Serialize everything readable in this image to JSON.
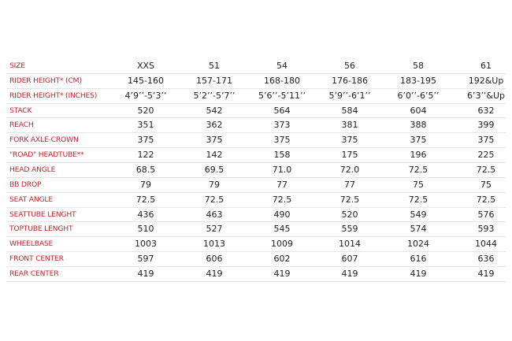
{
  "colors": {
    "label": "#c8242b",
    "value": "#222222",
    "divider": "#e6e6e6"
  },
  "table": {
    "columns": [
      "XXS",
      "51",
      "54",
      "56",
      "58",
      "61"
    ],
    "header_label": "SIZE",
    "rows": [
      {
        "label": "RIDER HEIGHT* (CM)",
        "values": [
          "145-160",
          "157-171",
          "168-180",
          "176-186",
          "183-195",
          "192&Up"
        ]
      },
      {
        "label": "RIDER HEIGHT* (INCHES)",
        "values": [
          "4’9’’-5’3’’",
          "5’2’’-5’7’’",
          "5’6’’-5’11’’",
          "5’9’’-6’1’’",
          "6’0’’-6’5’’",
          "6’3’’&Up"
        ]
      },
      {
        "label": "STACK",
        "values": [
          "520",
          "542",
          "564",
          "584",
          "604",
          "632"
        ]
      },
      {
        "label": "REACH",
        "values": [
          "351",
          "362",
          "373",
          "381",
          "388",
          "399"
        ]
      },
      {
        "label": "FORK AXLE-CROWN",
        "values": [
          "375",
          "375",
          "375",
          "375",
          "375",
          "375"
        ]
      },
      {
        "label": "\"ROAD\" HEADTUBE**",
        "values": [
          "122",
          "142",
          "158",
          "175",
          "196",
          "225"
        ]
      },
      {
        "label": "HEAD ANGLE",
        "values": [
          "68.5",
          "69.5",
          "71.0",
          "72.0",
          "72.5",
          "72.5"
        ]
      },
      {
        "label": "BB DROP",
        "values": [
          "79",
          "79",
          "77",
          "77",
          "75",
          "75"
        ]
      },
      {
        "label": "SEAT ANGLE",
        "values": [
          "72.5",
          "72.5",
          "72.5",
          "72.5",
          "72.5",
          "72.5"
        ]
      },
      {
        "label": "SEATTUBE LENGHT",
        "values": [
          "436",
          "463",
          "490",
          "520",
          "549",
          "576"
        ]
      },
      {
        "label": "TOPTUBE LENGHT",
        "values": [
          "510",
          "527",
          "545",
          "559",
          "574",
          "593"
        ]
      },
      {
        "label": "WHEELBASE",
        "values": [
          "1003",
          "1013",
          "1009",
          "1014",
          "1024",
          "1044"
        ]
      },
      {
        "label": "FRONT CENTER",
        "values": [
          "597",
          "606",
          "602",
          "607",
          "616",
          "636"
        ]
      },
      {
        "label": "REAR CENTER",
        "values": [
          "419",
          "419",
          "419",
          "419",
          "419",
          "419"
        ]
      }
    ]
  }
}
